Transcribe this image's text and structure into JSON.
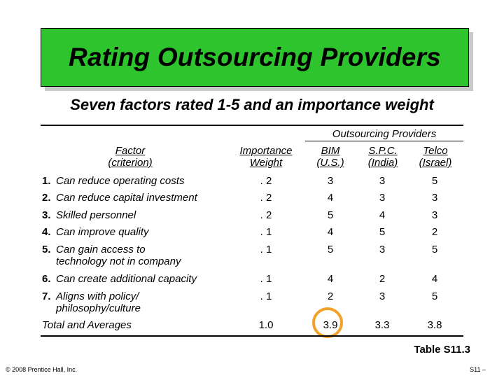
{
  "title": "Rating Outsourcing Providers",
  "subtitle": "Seven factors rated 1-5 and an importance weight",
  "table": {
    "group_header": "Outsourcing Providers",
    "headers": {
      "factor": [
        "Factor",
        "(criterion)"
      ],
      "importance": [
        "Importance",
        "Weight"
      ],
      "p1": [
        "BIM",
        "(U.S.)"
      ],
      "p2": [
        "S.P.C.",
        "(India)"
      ],
      "p3": [
        "Telco",
        "(Israel)"
      ]
    },
    "rows": [
      {
        "num": "1.",
        "factor": [
          "Can reduce operating costs"
        ],
        "importance": ". 2",
        "p1": "3",
        "p2": "3",
        "p3": "5"
      },
      {
        "num": "2.",
        "factor": [
          "Can reduce capital investment"
        ],
        "importance": ". 2",
        "p1": "4",
        "p2": "3",
        "p3": "3"
      },
      {
        "num": "3.",
        "factor": [
          "Skilled personnel"
        ],
        "importance": ". 2",
        "p1": "5",
        "p2": "4",
        "p3": "3"
      },
      {
        "num": "4.",
        "factor": [
          "Can improve quality"
        ],
        "importance": ". 1",
        "p1": "4",
        "p2": "5",
        "p3": "2"
      },
      {
        "num": "5.",
        "factor": [
          "Can gain access to",
          "technology not in company"
        ],
        "importance": ". 1",
        "p1": "5",
        "p2": "3",
        "p3": "5"
      },
      {
        "num": "6.",
        "factor": [
          "Can create additional capacity"
        ],
        "importance": ". 1",
        "p1": "4",
        "p2": "2",
        "p3": "4"
      },
      {
        "num": "7.",
        "factor": [
          "Aligns with policy/",
          "philosophy/culture"
        ],
        "importance": ". 1",
        "p1": "2",
        "p2": "3",
        "p3": "5"
      }
    ],
    "total": {
      "label": "Total and Averages",
      "importance": "1.0",
      "p1": "3.9",
      "p2": "3.3",
      "p3": "3.8"
    }
  },
  "table_label": "Table S11.3",
  "footer_left": "© 2008 Prentice Hall, Inc.",
  "footer_right": "S11 –",
  "colors": {
    "title_bg": "#2ec42e",
    "highlight": "#f2a12a"
  }
}
